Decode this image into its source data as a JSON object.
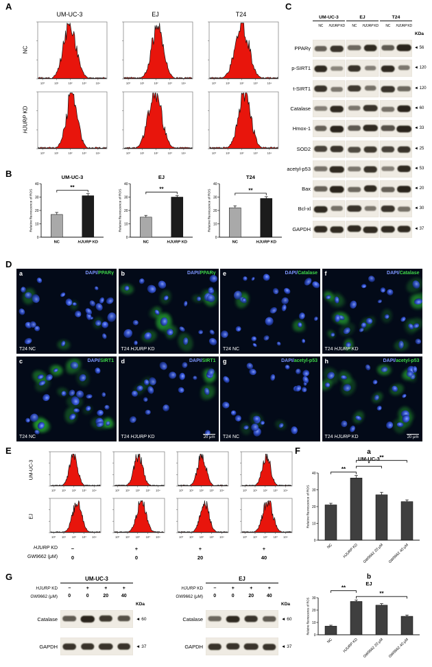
{
  "panelA": {
    "label": "A",
    "col_titles": [
      "UM-UC-3",
      "EJ",
      "T24"
    ],
    "row_labels": [
      "NC",
      "HJURP KD"
    ],
    "x_ticks": [
      "10⁰",
      "10¹",
      "10²",
      "10³",
      "10⁴"
    ]
  },
  "panelB": {
    "label": "B"
  },
  "chart_data": [
    {
      "id": "B-UM-UC-3",
      "panel": "B",
      "type": "bar",
      "title": "UM-UC-3",
      "categories": [
        "NC",
        "HJURP KD"
      ],
      "values": [
        17,
        31
      ],
      "errors": [
        1.5,
        1.5
      ],
      "ylabel": "Relative fluorescence of ROS",
      "ylim": [
        0,
        40
      ],
      "yticks": [
        0,
        10,
        20,
        30,
        40
      ],
      "bar_colors": [
        "#a9a9a9",
        "#1c1c1c"
      ],
      "significance": [
        {
          "from": 0,
          "to": 1,
          "label": "**",
          "row": 0
        }
      ],
      "rotate_labels": false
    },
    {
      "id": "B-EJ",
      "panel": "B",
      "type": "bar",
      "title": "EJ",
      "categories": [
        "NC",
        "HJURP KD"
      ],
      "values": [
        15,
        30
      ],
      "errors": [
        1.3,
        1.2
      ],
      "ylabel": "Relative fluorescence of ROS",
      "ylim": [
        0,
        40
      ],
      "yticks": [
        0,
        10,
        20,
        30,
        40
      ],
      "bar_colors": [
        "#a9a9a9",
        "#1c1c1c"
      ],
      "significance": [
        {
          "from": 0,
          "to": 1,
          "label": "**",
          "row": 0
        }
      ],
      "rotate_labels": false
    },
    {
      "id": "B-T24",
      "panel": "B",
      "type": "bar",
      "title": "T24",
      "categories": [
        "NC",
        "HJURP KD"
      ],
      "values": [
        22,
        29
      ],
      "errors": [
        1.5,
        1.3
      ],
      "ylabel": "Relative fluorescence of ROS",
      "ylim": [
        0,
        40
      ],
      "yticks": [
        0,
        10,
        20,
        30,
        40
      ],
      "bar_colors": [
        "#a9a9a9",
        "#1c1c1c"
      ],
      "significance": [
        {
          "from": 0,
          "to": 1,
          "label": "**",
          "row": 0
        }
      ],
      "rotate_labels": false
    },
    {
      "id": "F-a-UM-UC-3",
      "panel": "F",
      "letter": "a",
      "type": "bar",
      "title": "UM-UC-3",
      "categories": [
        "NC",
        "HJURP KD",
        "GW9662 20 μM",
        "GW9662 40 μM"
      ],
      "values": [
        21,
        37,
        27,
        23
      ],
      "errors": [
        1.0,
        1.5,
        1.5,
        1.0
      ],
      "ylabel": "Relative fluorescence of ROS",
      "ylim": [
        0,
        40
      ],
      "yticks": [
        0,
        10,
        20,
        30,
        40
      ],
      "bar_colors": [
        "#3f3f3f",
        "#3f3f3f",
        "#3f3f3f",
        "#3f3f3f"
      ],
      "significance": [
        {
          "from": 0,
          "to": 1,
          "label": "**",
          "row": 0
        },
        {
          "from": 1,
          "to": 2,
          "label": "*",
          "row": 1
        },
        {
          "from": 1,
          "to": 3,
          "label": "**",
          "row": 2
        }
      ],
      "rotate_labels": true
    },
    {
      "id": "F-b-EJ",
      "panel": "F",
      "letter": "b",
      "type": "bar",
      "title": "EJ",
      "categories": [
        "NC",
        "HJURP KD",
        "GW9662 20 μM",
        "GW9662 40 μM"
      ],
      "values": [
        7,
        27,
        24,
        15
      ],
      "errors": [
        0.8,
        1.2,
        1.2,
        1.0
      ],
      "ylabel": "Relative fluorescence of ROS",
      "ylim": [
        0,
        30
      ],
      "yticks": [
        0,
        10,
        20,
        30
      ],
      "bar_colors": [
        "#3f3f3f",
        "#3f3f3f",
        "#3f3f3f",
        "#3f3f3f"
      ],
      "significance": [
        {
          "from": 0,
          "to": 1,
          "label": "**",
          "row": 1
        },
        {
          "from": 1,
          "to": 3,
          "label": "**",
          "row": 0
        }
      ],
      "rotate_labels": true
    }
  ],
  "panelC": {
    "label": "C",
    "cell_lines": [
      "UM-UC-3",
      "EJ",
      "T24"
    ],
    "lane_labels": [
      "NC",
      "HJURP KD"
    ],
    "kda_label": "KDa",
    "rows": [
      {
        "protein": "PPARγ",
        "kda": "56",
        "bands": [
          0.55,
          0.85,
          0.5,
          0.9,
          0.6,
          0.95
        ]
      },
      {
        "protein": "p-SIRT1",
        "kda": "120",
        "bands": [
          0.9,
          0.3,
          0.85,
          0.35,
          0.9,
          0.4
        ]
      },
      {
        "protein": "t-SIRT1",
        "kda": "120",
        "bands": [
          0.85,
          0.4,
          0.8,
          0.45,
          0.85,
          0.5
        ]
      },
      {
        "protein": "Catalase",
        "kda": "60",
        "bands": [
          0.35,
          0.9,
          0.4,
          0.85,
          0.45,
          0.95
        ]
      },
      {
        "protein": "Hmox-1",
        "kda": "33",
        "bands": [
          0.55,
          0.95,
          0.6,
          0.9,
          0.65,
          0.95
        ]
      },
      {
        "protein": "SOD2",
        "kda": "25",
        "bands": [
          0.75,
          0.85,
          0.7,
          0.8,
          0.75,
          0.85
        ]
      },
      {
        "protein": "acetyl-p53",
        "kda": "53",
        "bands": [
          0.45,
          0.9,
          0.4,
          0.85,
          0.35,
          0.9
        ]
      },
      {
        "protein": "Bax",
        "kda": "20",
        "bands": [
          0.55,
          0.95,
          0.5,
          0.9,
          0.55,
          0.95
        ]
      },
      {
        "protein": "Bcl-xl",
        "kda": "30",
        "bands": [
          0.9,
          0.45,
          0.85,
          0.4,
          0.85,
          0.45
        ]
      },
      {
        "protein": "GAPDH",
        "kda": "37",
        "bands": [
          0.9,
          0.9,
          0.9,
          0.9,
          0.9,
          0.9
        ]
      }
    ]
  },
  "panelD": {
    "label": "D",
    "scale_label": "20 μm",
    "cells": [
      {
        "letter": "a",
        "stain": "DAPI/",
        "protein": "PPARγ",
        "condition": "T24 NC",
        "green": 0.12,
        "scale": ""
      },
      {
        "letter": "b",
        "stain": "DAPI/",
        "protein": "PPARγ",
        "condition": "T24 HJURP KD",
        "green": 0.5,
        "scale": ""
      },
      {
        "letter": "e",
        "stain": "DAPI/",
        "protein": "Catalase",
        "condition": "T24 NC",
        "green": 0.15,
        "scale": ""
      },
      {
        "letter": "f",
        "stain": "DAPI/",
        "protein": "Catalase",
        "condition": "T24 HJURP KD",
        "green": 0.65,
        "scale": ""
      },
      {
        "letter": "c",
        "stain": "DAPI/",
        "protein": "SIRT1",
        "condition": "T24 NC",
        "green": 0.7,
        "scale": ""
      },
      {
        "letter": "d",
        "stain": "DAPI/",
        "protein": "SIRT1",
        "condition": "T24 HJURP KD",
        "green": 0.35,
        "scale": "20 μm"
      },
      {
        "letter": "g",
        "stain": "DAPI/",
        "protein": "acetyl-p53",
        "condition": "T24 NC",
        "green": 0.12,
        "scale": ""
      },
      {
        "letter": "h",
        "stain": "DAPI/",
        "protein": "acetyl-p53",
        "condition": "T24 HJURP KD",
        "green": 0.6,
        "scale": "20 μm"
      }
    ]
  },
  "panelE": {
    "label": "E",
    "row_labels": [
      "UM-UC-3",
      "EJ"
    ],
    "conditions": [
      {
        "label": "HJURP KD",
        "values": [
          "−",
          "+",
          "+",
          "+"
        ]
      },
      {
        "label": "GW9662 (μM)",
        "values": [
          "0",
          "0",
          "20",
          "40"
        ]
      }
    ]
  },
  "panelF": {
    "label": "F"
  },
  "panelG": {
    "label": "G",
    "kda_label": "KDa",
    "groups": [
      {
        "cell_line": "UM-UC-3",
        "conditions": [
          {
            "label": "HJURP KD",
            "values": [
              "−",
              "+",
              "+",
              "+"
            ]
          },
          {
            "label": "GW9662 (μM)",
            "values": [
              "0",
              "0",
              "20",
              "40"
            ]
          }
        ],
        "rows": [
          {
            "protein": "Catalase",
            "kda": "60",
            "bands": [
              0.6,
              0.95,
              0.8,
              0.65
            ]
          },
          {
            "protein": "GAPDH",
            "kda": "37",
            "bands": [
              0.85,
              0.85,
              0.85,
              0.85
            ]
          }
        ]
      },
      {
        "cell_line": "EJ",
        "conditions": [
          {
            "label": "HJURP KD",
            "values": [
              "−",
              "+",
              "+",
              "+"
            ]
          },
          {
            "label": "GW9662 (μM)",
            "values": [
              "0",
              "0",
              "20",
              "40"
            ]
          }
        ],
        "rows": [
          {
            "protein": "Catalase",
            "kda": "60",
            "bands": [
              0.5,
              0.9,
              0.85,
              0.6
            ]
          },
          {
            "protein": "GAPDH",
            "kda": "37",
            "bands": [
              0.85,
              0.85,
              0.85,
              0.85
            ]
          }
        ]
      }
    ]
  },
  "colors": {
    "flow_fill": "#e8150c",
    "dapi_blue": "#3b5bdf",
    "stain_green": "#2ec437",
    "bar_gray": "#a9a9a9",
    "bar_black": "#1c1c1c"
  }
}
